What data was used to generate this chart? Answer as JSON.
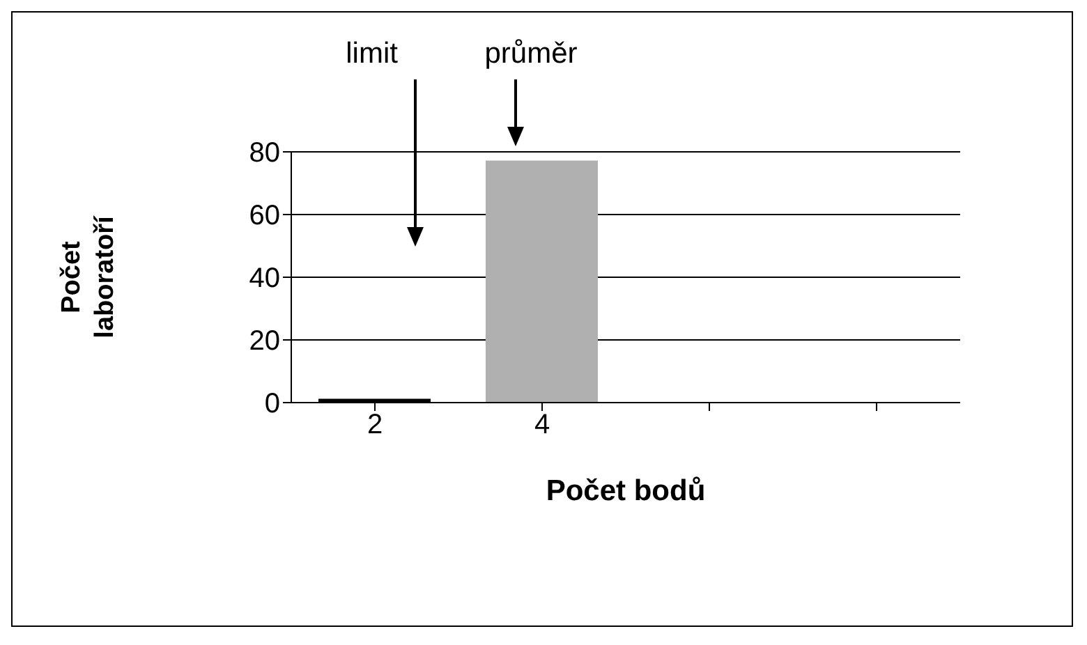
{
  "chart_data": {
    "type": "bar",
    "xlabel": "Počet bodů",
    "ylabel": "Počet laboratoří",
    "categories": [
      "2",
      "4",
      null,
      null
    ],
    "values": [
      1,
      77,
      0,
      0
    ],
    "colors": [
      "#000000",
      "#b0b0b0",
      "#000000",
      "#000000"
    ],
    "ylim": [
      0,
      80
    ],
    "yticks": [
      0,
      20,
      40,
      60,
      80
    ],
    "grid": "y",
    "annotations": [
      "limit",
      "průměr"
    ]
  }
}
